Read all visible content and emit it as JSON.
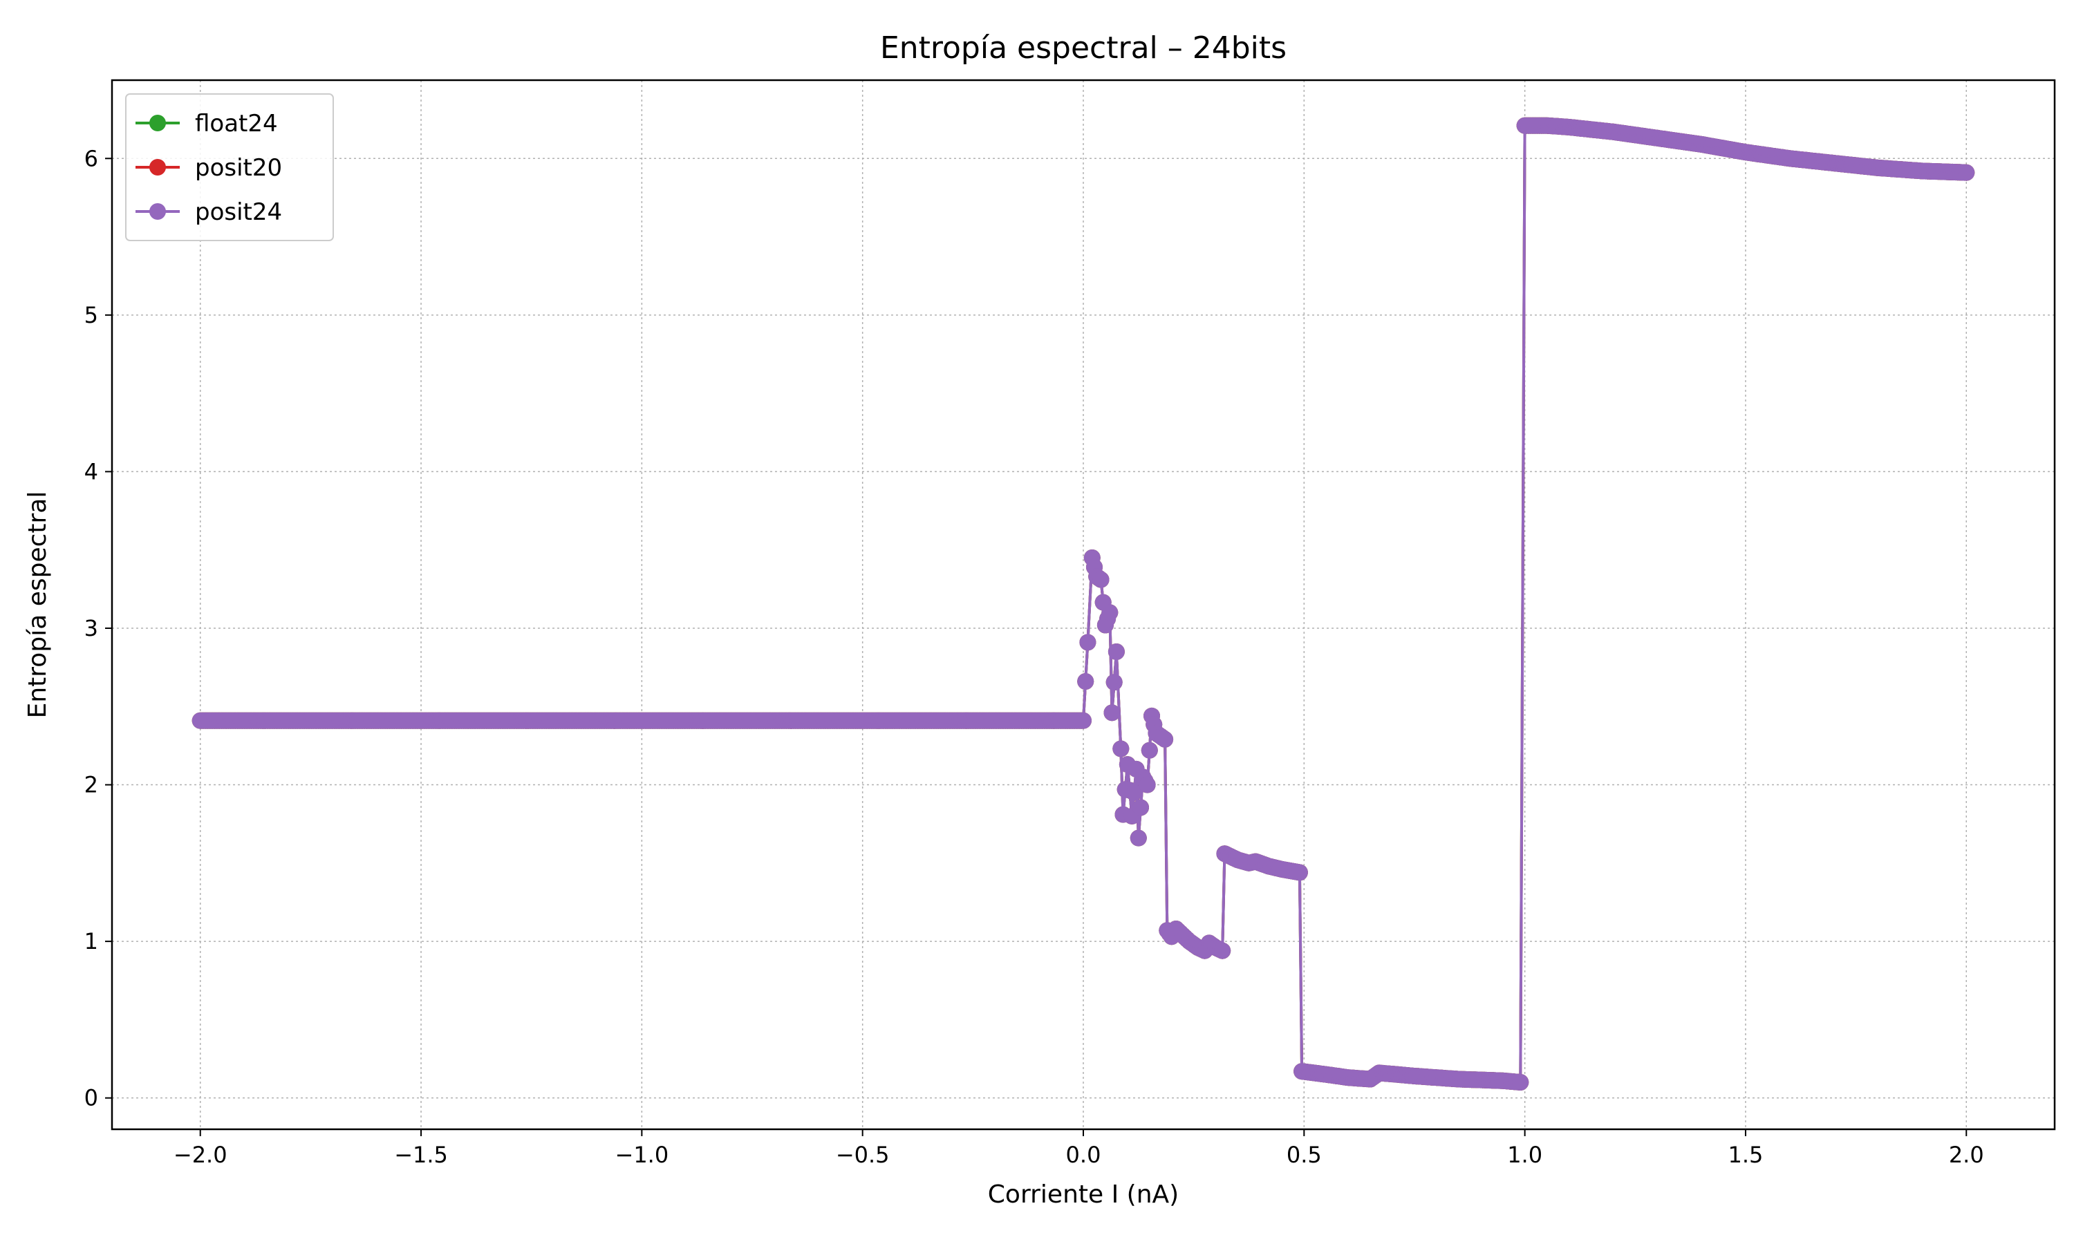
{
  "chart_data": {
    "type": "line",
    "title": "Entropía espectral – 24bits",
    "xlabel": "Corriente I (nA)",
    "ylabel": "Entropía espectral",
    "xlim": [
      -2.2,
      2.2
    ],
    "ylim": [
      -0.2,
      6.5
    ],
    "xticks": [
      -2.0,
      -1.5,
      -1.0,
      -0.5,
      0.0,
      0.5,
      1.0,
      1.5,
      2.0
    ],
    "xtick_labels": [
      "−2.0",
      "−1.5",
      "−1.0",
      "−0.5",
      "0.0",
      "0.5",
      "1.0",
      "1.5",
      "2.0"
    ],
    "yticks": [
      0,
      1,
      2,
      3,
      4,
      5,
      6
    ],
    "ytick_labels": [
      "0",
      "1",
      "2",
      "3",
      "4",
      "5",
      "6"
    ],
    "grid": true,
    "legend_position": "top-left",
    "series": [
      {
        "name": "float24",
        "color": "#2ca02c",
        "marker": "circle",
        "points": [
          [
            -2.0,
            2.41
          ],
          [
            0.0,
            2.41
          ],
          [
            0.01,
            2.91
          ],
          [
            0.02,
            3.45
          ],
          [
            0.03,
            3.33
          ],
          [
            0.04,
            3.31
          ],
          [
            0.05,
            3.02
          ],
          [
            0.06,
            3.1
          ],
          [
            0.065,
            2.46
          ],
          [
            0.075,
            2.85
          ],
          [
            0.085,
            2.23
          ],
          [
            0.09,
            1.81
          ],
          [
            0.1,
            2.13
          ],
          [
            0.11,
            1.8
          ],
          [
            0.12,
            2.1
          ],
          [
            0.125,
            1.66
          ],
          [
            0.135,
            2.05
          ],
          [
            0.145,
            2.0
          ],
          [
            0.155,
            2.44
          ],
          [
            0.165,
            2.33
          ],
          [
            0.175,
            2.31
          ],
          [
            0.185,
            2.29
          ],
          [
            0.19,
            1.07
          ],
          [
            0.2,
            1.03
          ],
          [
            0.21,
            1.08
          ],
          [
            0.225,
            1.04
          ],
          [
            0.24,
            1.0
          ],
          [
            0.26,
            0.96
          ],
          [
            0.275,
            0.94
          ],
          [
            0.285,
            0.99
          ],
          [
            0.3,
            0.96
          ],
          [
            0.315,
            0.94
          ],
          [
            0.32,
            1.56
          ],
          [
            0.35,
            1.52
          ],
          [
            0.375,
            1.5
          ],
          [
            0.39,
            1.51
          ],
          [
            0.42,
            1.48
          ],
          [
            0.45,
            1.46
          ],
          [
            0.49,
            1.44
          ],
          [
            0.495,
            0.17
          ],
          [
            0.55,
            0.15
          ],
          [
            0.6,
            0.13
          ],
          [
            0.65,
            0.12
          ],
          [
            0.67,
            0.16
          ],
          [
            0.75,
            0.14
          ],
          [
            0.85,
            0.12
          ],
          [
            0.95,
            0.11
          ],
          [
            0.99,
            0.1
          ],
          [
            1.0,
            6.21
          ],
          [
            1.05,
            6.21
          ],
          [
            1.1,
            6.2
          ],
          [
            1.2,
            6.17
          ],
          [
            1.3,
            6.13
          ],
          [
            1.4,
            6.09
          ],
          [
            1.5,
            6.04
          ],
          [
            1.6,
            6.0
          ],
          [
            1.7,
            5.97
          ],
          [
            1.8,
            5.94
          ],
          [
            1.9,
            5.92
          ],
          [
            2.0,
            5.91
          ]
        ]
      },
      {
        "name": "posit20",
        "color": "#d62728",
        "marker": "circle",
        "points": [
          [
            -2.0,
            2.41
          ],
          [
            0.0,
            2.41
          ],
          [
            0.01,
            2.91
          ],
          [
            0.02,
            3.45
          ],
          [
            0.03,
            3.33
          ],
          [
            0.04,
            3.31
          ],
          [
            0.05,
            3.02
          ],
          [
            0.06,
            3.1
          ],
          [
            0.065,
            2.46
          ],
          [
            0.075,
            2.85
          ],
          [
            0.085,
            2.23
          ],
          [
            0.09,
            1.81
          ],
          [
            0.1,
            2.13
          ],
          [
            0.11,
            1.8
          ],
          [
            0.12,
            2.1
          ],
          [
            0.125,
            1.66
          ],
          [
            0.135,
            2.05
          ],
          [
            0.145,
            2.0
          ],
          [
            0.155,
            2.44
          ],
          [
            0.165,
            2.33
          ],
          [
            0.175,
            2.31
          ],
          [
            0.185,
            2.29
          ],
          [
            0.19,
            1.07
          ],
          [
            0.2,
            1.03
          ],
          [
            0.21,
            1.08
          ],
          [
            0.225,
            1.04
          ],
          [
            0.24,
            1.0
          ],
          [
            0.26,
            0.96
          ],
          [
            0.275,
            0.94
          ],
          [
            0.285,
            0.99
          ],
          [
            0.3,
            0.96
          ],
          [
            0.315,
            0.94
          ],
          [
            0.32,
            1.56
          ],
          [
            0.35,
            1.52
          ],
          [
            0.375,
            1.5
          ],
          [
            0.39,
            1.51
          ],
          [
            0.42,
            1.48
          ],
          [
            0.45,
            1.46
          ],
          [
            0.49,
            1.44
          ],
          [
            0.495,
            0.17
          ],
          [
            0.55,
            0.15
          ],
          [
            0.6,
            0.13
          ],
          [
            0.65,
            0.12
          ],
          [
            0.67,
            0.16
          ],
          [
            0.75,
            0.14
          ],
          [
            0.85,
            0.12
          ],
          [
            0.95,
            0.11
          ],
          [
            0.99,
            0.1
          ],
          [
            1.0,
            6.21
          ],
          [
            1.05,
            6.21
          ],
          [
            1.1,
            6.2
          ],
          [
            1.2,
            6.17
          ],
          [
            1.3,
            6.13
          ],
          [
            1.4,
            6.09
          ],
          [
            1.5,
            6.04
          ],
          [
            1.6,
            6.0
          ],
          [
            1.7,
            5.97
          ],
          [
            1.8,
            5.94
          ],
          [
            1.9,
            5.92
          ],
          [
            2.0,
            5.91
          ]
        ]
      },
      {
        "name": "posit24",
        "color": "#9467bd",
        "marker": "circle",
        "points": [
          [
            -2.0,
            2.41
          ],
          [
            0.0,
            2.41
          ],
          [
            0.01,
            2.91
          ],
          [
            0.02,
            3.45
          ],
          [
            0.03,
            3.33
          ],
          [
            0.04,
            3.31
          ],
          [
            0.05,
            3.02
          ],
          [
            0.06,
            3.1
          ],
          [
            0.065,
            2.46
          ],
          [
            0.075,
            2.85
          ],
          [
            0.085,
            2.23
          ],
          [
            0.09,
            1.81
          ],
          [
            0.1,
            2.13
          ],
          [
            0.11,
            1.8
          ],
          [
            0.12,
            2.1
          ],
          [
            0.125,
            1.66
          ],
          [
            0.135,
            2.05
          ],
          [
            0.145,
            2.0
          ],
          [
            0.155,
            2.44
          ],
          [
            0.165,
            2.33
          ],
          [
            0.175,
            2.31
          ],
          [
            0.185,
            2.29
          ],
          [
            0.19,
            1.07
          ],
          [
            0.2,
            1.03
          ],
          [
            0.21,
            1.08
          ],
          [
            0.225,
            1.04
          ],
          [
            0.24,
            1.0
          ],
          [
            0.26,
            0.96
          ],
          [
            0.275,
            0.94
          ],
          [
            0.285,
            0.99
          ],
          [
            0.3,
            0.96
          ],
          [
            0.315,
            0.94
          ],
          [
            0.32,
            1.56
          ],
          [
            0.35,
            1.52
          ],
          [
            0.375,
            1.5
          ],
          [
            0.39,
            1.51
          ],
          [
            0.42,
            1.48
          ],
          [
            0.45,
            1.46
          ],
          [
            0.49,
            1.44
          ],
          [
            0.495,
            0.17
          ],
          [
            0.55,
            0.15
          ],
          [
            0.6,
            0.13
          ],
          [
            0.65,
            0.12
          ],
          [
            0.67,
            0.16
          ],
          [
            0.75,
            0.14
          ],
          [
            0.85,
            0.12
          ],
          [
            0.95,
            0.11
          ],
          [
            0.99,
            0.1
          ],
          [
            1.0,
            6.21
          ],
          [
            1.05,
            6.21
          ],
          [
            1.1,
            6.2
          ],
          [
            1.2,
            6.17
          ],
          [
            1.3,
            6.13
          ],
          [
            1.4,
            6.09
          ],
          [
            1.5,
            6.04
          ],
          [
            1.6,
            6.0
          ],
          [
            1.7,
            5.97
          ],
          [
            1.8,
            5.94
          ],
          [
            1.9,
            5.92
          ],
          [
            2.0,
            5.91
          ]
        ]
      }
    ]
  }
}
